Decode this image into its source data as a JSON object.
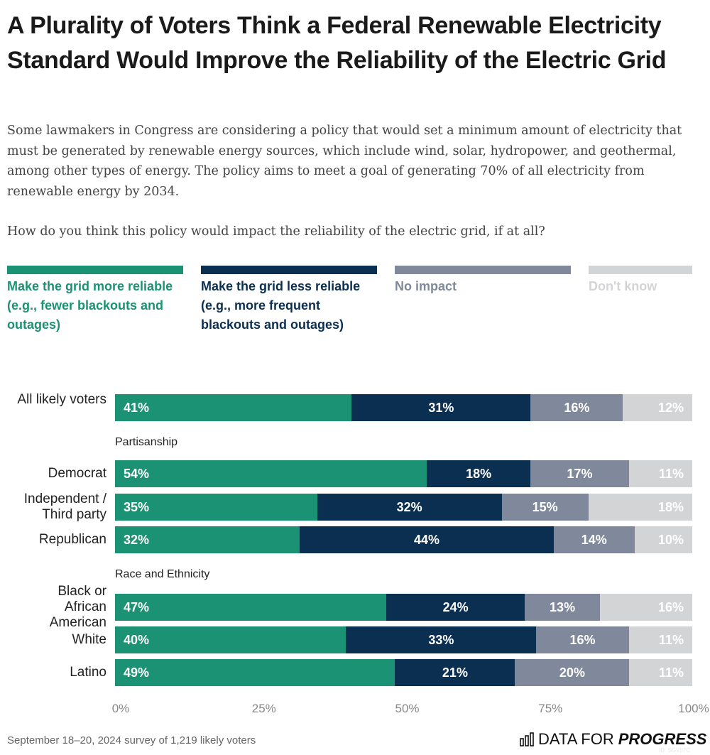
{
  "title": "A Plurality of Voters Think a Federal Renewable Electricity Standard Would Improve the Reliability of the Electric Grid",
  "subtitle": "Some lawmakers in Congress are considering a policy that would set a minimum amount of electricity that must be generated by renewable energy sources, which include wind, solar, hydropower, and geothermal, among other types of energy. The policy aims to meet a goal of generating 70% of all electricity from renewable energy by 2034.",
  "question": "How do you think this policy would impact the reliability of the electric grid, if at all?",
  "source": "September 18–20, 2024 survey of 1,219 likely voters",
  "logo": {
    "text_light": "DATA FOR",
    "text_bold": "PROGRESS",
    "icon": "bar-chart-icon"
  },
  "watermark": "ID: SGV07C",
  "chart_data": {
    "type": "bar",
    "orientation": "horizontal",
    "stacked": true,
    "xlim": [
      0,
      100
    ],
    "ticks": [
      "0%",
      "25%",
      "50%",
      "75%",
      "100%"
    ],
    "tick_values": [
      0,
      25,
      50,
      75,
      100
    ],
    "legend_position": "top",
    "series": [
      {
        "name": "Make the grid more reliable (e.g., fewer blackouts and outages)",
        "color": "#1b9273",
        "text_color": "#1b9273"
      },
      {
        "name": "Make the grid less reliable (e.g., more frequent blackouts and outages)",
        "color": "#0b2f51",
        "text_color": "#0b2f51"
      },
      {
        "name": "No impact",
        "color": "#7f899b",
        "text_color": "#7f899b"
      },
      {
        "name": "Don't know",
        "color": "#d3d4d6",
        "text_color": "#d3d4d6"
      }
    ],
    "rows": [
      {
        "label": "All likely voters",
        "values": [
          41,
          31,
          16,
          12
        ],
        "labels": [
          "41%",
          "31%",
          "16%",
          "12%"
        ]
      },
      {
        "group": "Partisanship"
      },
      {
        "label": "Democrat",
        "values": [
          54,
          18,
          17,
          11
        ],
        "labels": [
          "54%",
          "18%",
          "17%",
          "11%"
        ]
      },
      {
        "label": "Independent / Third party",
        "values": [
          35,
          32,
          15,
          18
        ],
        "labels": [
          "35%",
          "32%",
          "15%",
          "18%"
        ]
      },
      {
        "label": "Republican",
        "values": [
          32,
          44,
          14,
          10
        ],
        "labels": [
          "32%",
          "44%",
          "14%",
          "10%"
        ]
      },
      {
        "group": "Race and Ethnicity"
      },
      {
        "label": "Black or African American",
        "values": [
          47,
          24,
          13,
          16
        ],
        "labels": [
          "47%",
          "24%",
          "13%",
          "16%"
        ]
      },
      {
        "label": "White",
        "values": [
          40,
          33,
          16,
          11
        ],
        "labels": [
          "40%",
          "33%",
          "16%",
          "11%"
        ]
      },
      {
        "label": "Latino",
        "values": [
          49,
          21,
          20,
          11
        ],
        "labels": [
          "49%",
          "21%",
          "20%",
          "11%"
        ]
      }
    ]
  }
}
